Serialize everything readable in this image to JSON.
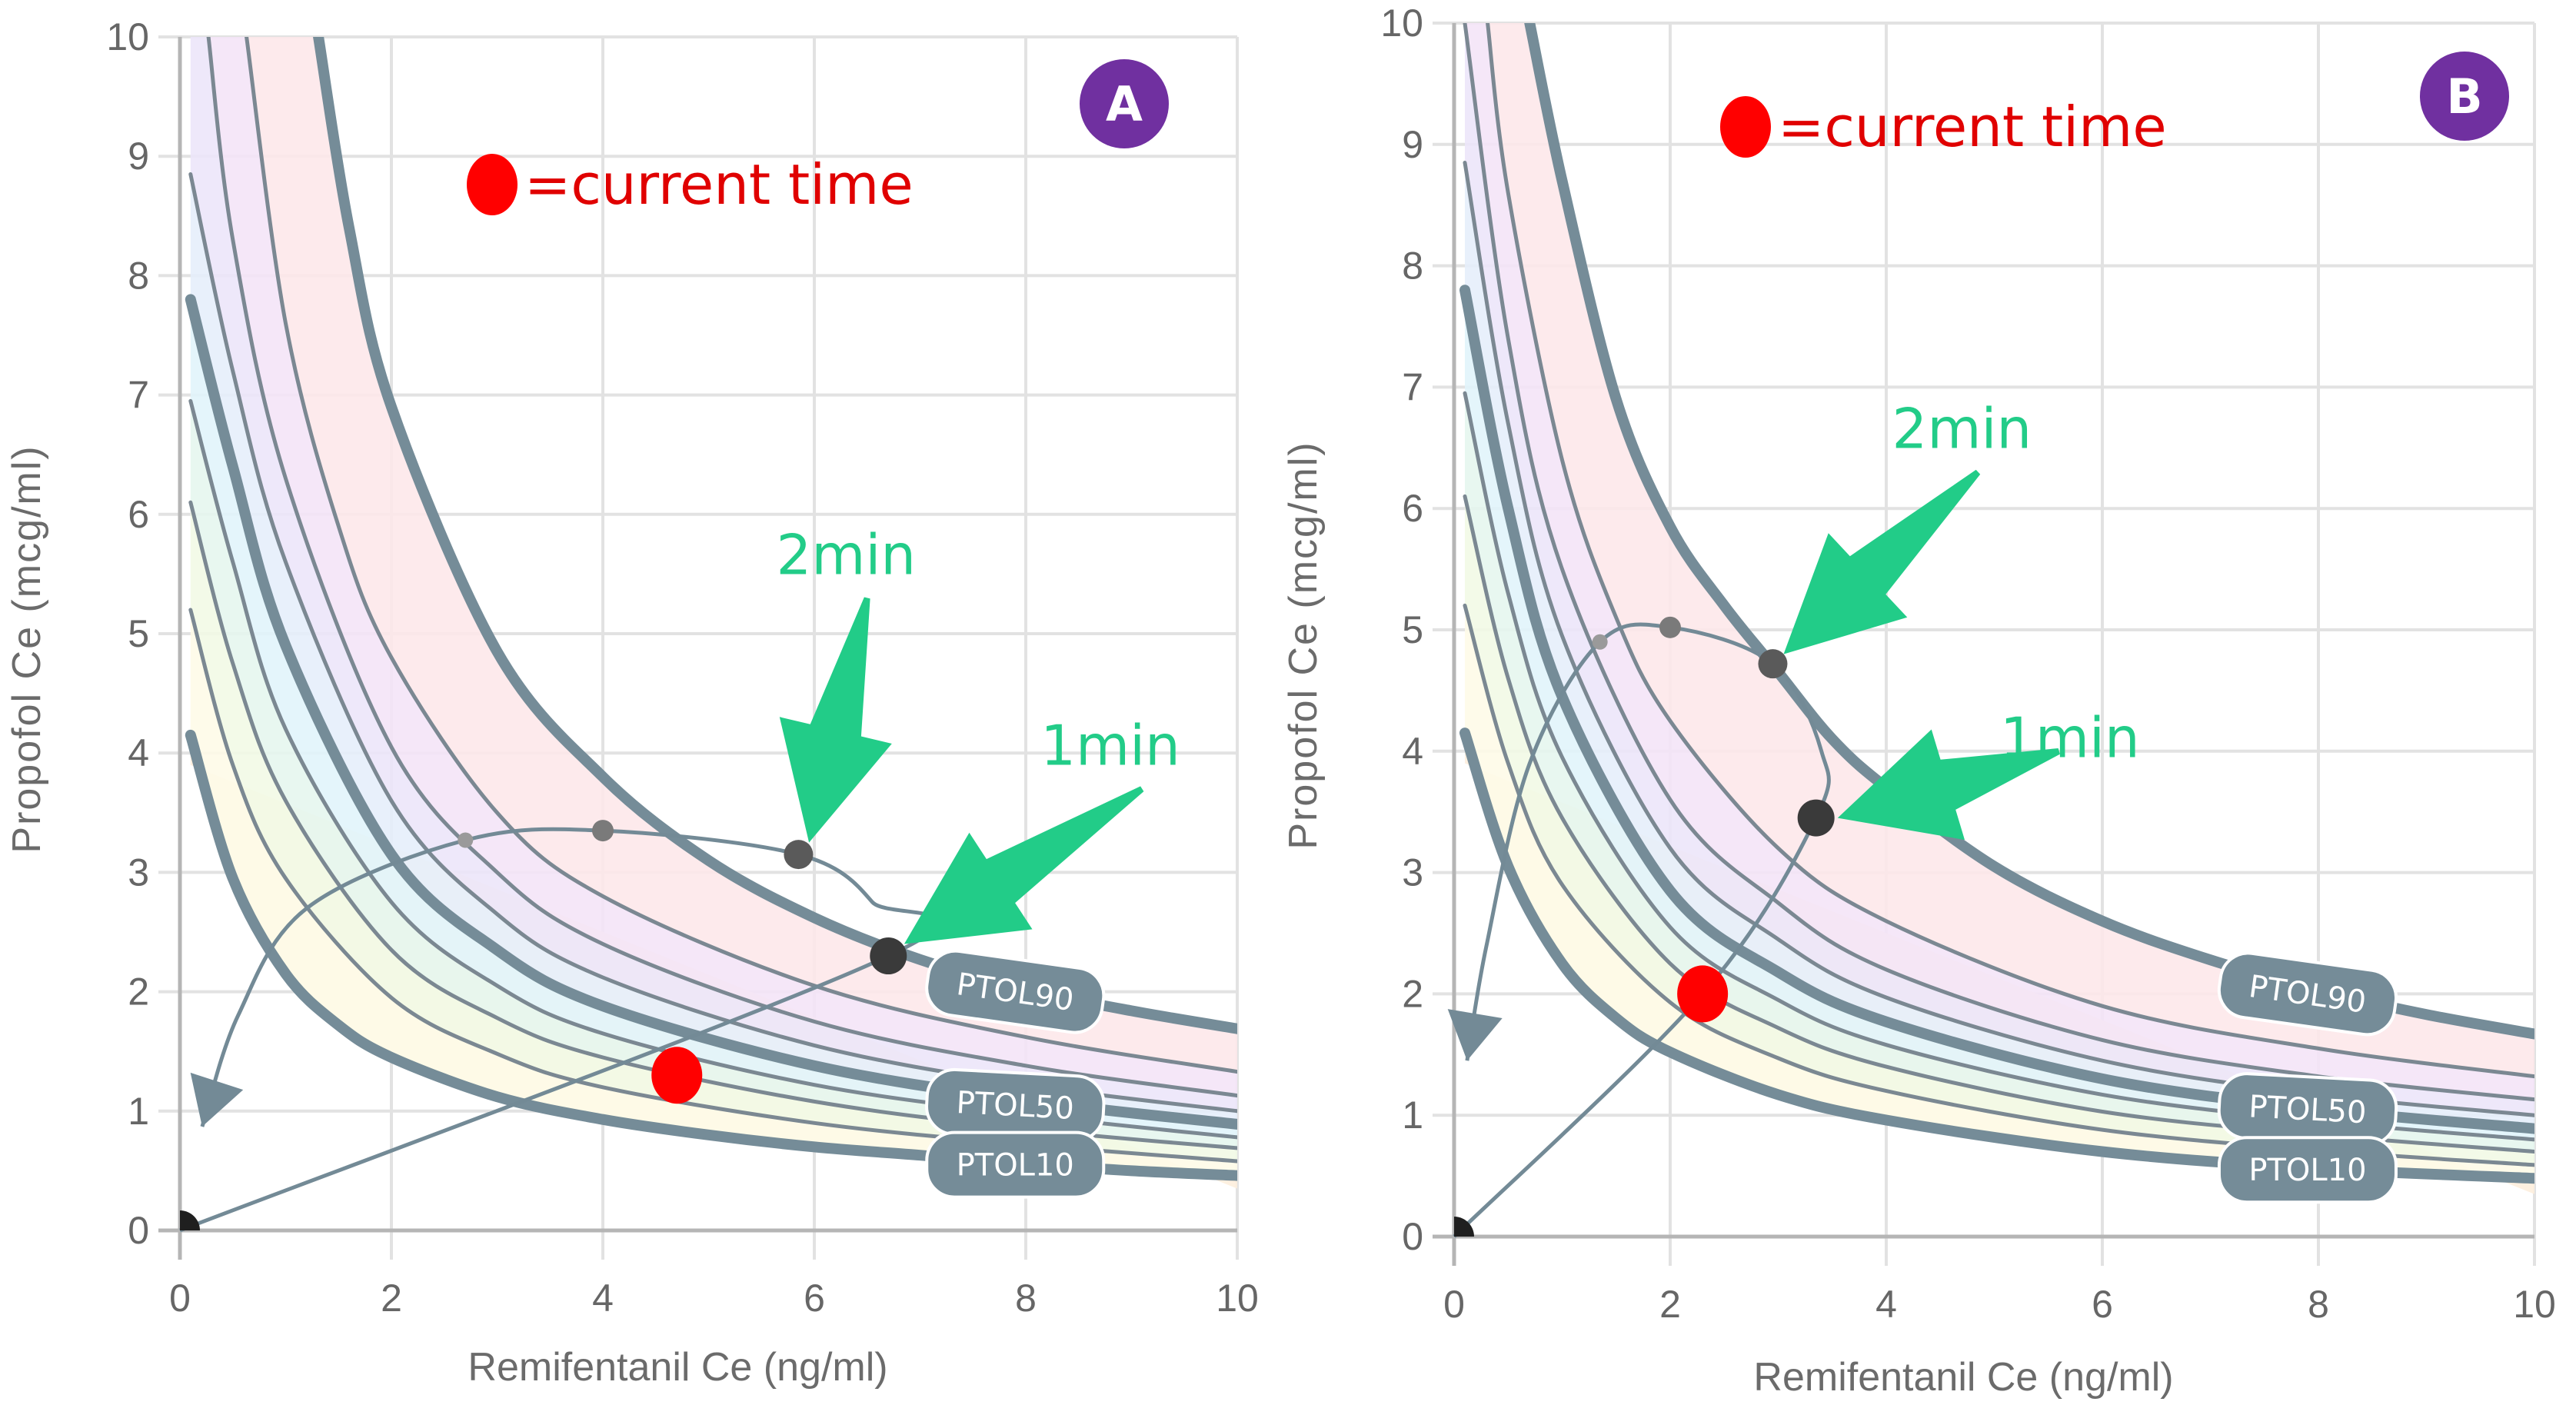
{
  "colors": {
    "grid": "#e2e2e2",
    "axis": "#b5b5b5",
    "isobole": "#758c98",
    "isobole_thin": "#7b8892",
    "label_bg": "#758c98",
    "label_text": "#ffffff",
    "trajectory": "#738a96",
    "red": "#ff0000",
    "legend_red": "#e00000",
    "green": "#22cc88",
    "badge": "#7030a0",
    "band_colors": [
      "#fdeedd",
      "#fefbe8",
      "#f2f9e6",
      "#e6f6ee",
      "#e1f4fb",
      "#e5eefb",
      "#ece6fa",
      "#f4e4f7",
      "#fde8ea"
    ]
  },
  "chart_data": [
    {
      "id": "A",
      "type": "line",
      "badge": "A",
      "xlabel": "Remifentanil Ce (ng/ml)",
      "ylabel": "Propofol Ce (mcg/ml)",
      "xlim": [
        0,
        10
      ],
      "ylim": [
        0,
        10
      ],
      "x_ticks": [
        "0",
        "2",
        "4",
        "6",
        "8",
        "10"
      ],
      "y_ticks": [
        "0",
        "1",
        "2",
        "3",
        "4",
        "5",
        "6",
        "7",
        "8",
        "9",
        "10"
      ],
      "grid": true,
      "legend": {
        "marker": "red-dot",
        "text": "=current time",
        "placement": "top-center"
      },
      "isoboles": [
        {
          "level": 10,
          "label": "PTOL10",
          "thick": true,
          "points": [
            [
              0.1,
              4.15
            ],
            [
              0.5,
              2.95
            ],
            [
              1,
              2.15
            ],
            [
              1.5,
              1.72
            ],
            [
              2,
              1.45
            ],
            [
              3,
              1.12
            ],
            [
              4,
              0.93
            ],
            [
              5,
              0.8
            ],
            [
              6,
              0.7
            ],
            [
              7,
              0.63
            ],
            [
              8,
              0.56
            ],
            [
              9,
              0.5
            ],
            [
              10,
              0.46
            ]
          ]
        },
        {
          "level": 20,
          "label": "",
          "thick": false,
          "points": [
            [
              0.1,
              5.2
            ],
            [
              0.5,
              3.9
            ],
            [
              1,
              2.95
            ],
            [
              2,
              1.95
            ],
            [
              3,
              1.48
            ],
            [
              4,
              1.2
            ],
            [
              6,
              0.9
            ],
            [
              8,
              0.72
            ],
            [
              10,
              0.58
            ]
          ]
        },
        {
          "level": 30,
          "label": "",
          "thick": false,
          "points": [
            [
              0.1,
              6.1
            ],
            [
              0.5,
              4.75
            ],
            [
              1,
              3.6
            ],
            [
              2,
              2.35
            ],
            [
              3,
              1.78
            ],
            [
              4,
              1.45
            ],
            [
              6,
              1.08
            ],
            [
              8,
              0.85
            ],
            [
              10,
              0.69
            ]
          ]
        },
        {
          "level": 40,
          "label": "",
          "thick": false,
          "points": [
            [
              0.1,
              6.95
            ],
            [
              0.5,
              5.6
            ],
            [
              1,
              4.2
            ],
            [
              2,
              2.75
            ],
            [
              3,
              2.05
            ],
            [
              4,
              1.65
            ],
            [
              6,
              1.22
            ],
            [
              8,
              0.97
            ],
            [
              10,
              0.78
            ]
          ]
        },
        {
          "level": 50,
          "label": "PTOL50",
          "thick": true,
          "points": [
            [
              0.1,
              7.8
            ],
            [
              0.5,
              6.4
            ],
            [
              1,
              4.9
            ],
            [
              2,
              3.15
            ],
            [
              3,
              2.35
            ],
            [
              4,
              1.88
            ],
            [
              6,
              1.38
            ],
            [
              8,
              1.09
            ],
            [
              10,
              0.89
            ]
          ]
        },
        {
          "level": 60,
          "label": "",
          "thick": false,
          "points": [
            [
              0.1,
              8.85
            ],
            [
              0.5,
              7.2
            ],
            [
              1,
              5.6
            ],
            [
              2,
              3.6
            ],
            [
              3,
              2.65
            ],
            [
              4,
              2.12
            ],
            [
              6,
              1.55
            ],
            [
              8,
              1.22
            ],
            [
              10,
              1.0
            ]
          ]
        },
        {
          "level": 70,
          "label": "",
          "thick": false,
          "points": [
            [
              0.27,
              10
            ],
            [
              0.5,
              8.3
            ],
            [
              1,
              6.3
            ],
            [
              2,
              4.05
            ],
            [
              3,
              3.0
            ],
            [
              4,
              2.4
            ],
            [
              6,
              1.75
            ],
            [
              8,
              1.38
            ],
            [
              10,
              1.13
            ]
          ]
        },
        {
          "level": 80,
          "label": "",
          "thick": false,
          "points": [
            [
              0.63,
              10
            ],
            [
              1,
              7.6
            ],
            [
              1.5,
              5.9
            ],
            [
              2,
              4.8
            ],
            [
              3,
              3.5
            ],
            [
              4,
              2.8
            ],
            [
              6,
              2.05
            ],
            [
              8,
              1.62
            ],
            [
              10,
              1.33
            ]
          ]
        },
        {
          "level": 90,
          "label": "PTOL90",
          "thick": true,
          "points": [
            [
              1.31,
              10
            ],
            [
              1.6,
              8.4
            ],
            [
              2,
              6.9
            ],
            [
              3,
              4.85
            ],
            [
              4,
              3.8
            ],
            [
              5,
              3.1
            ],
            [
              6,
              2.62
            ],
            [
              7,
              2.27
            ],
            [
              8,
              2.02
            ],
            [
              9,
              1.84
            ],
            [
              10,
              1.69
            ]
          ]
        }
      ],
      "isobole_labels": [
        {
          "text": "PTOL90",
          "x": 7.9,
          "y": 2.0,
          "angle": 8
        },
        {
          "text": "PTOL50",
          "x": 7.9,
          "y": 1.05,
          "angle": 3
        },
        {
          "text": "PTOL10",
          "x": 7.9,
          "y": 0.55,
          "angle": 0
        }
      ],
      "trajectory": {
        "points": [
          [
            0,
            0
          ],
          [
            6.7,
            2.3
          ],
          [
            6.55,
            2.75
          ],
          [
            5.85,
            3.15
          ],
          [
            4.0,
            3.35
          ],
          [
            2.7,
            3.27
          ],
          [
            1.2,
            2.7
          ],
          [
            0.55,
            1.8
          ],
          [
            0.21,
            0.87
          ]
        ],
        "start": [
          0,
          0
        ],
        "markers": [
          {
            "x": 6.7,
            "y": 2.3,
            "tone": "dark",
            "size": "large"
          },
          {
            "x": 5.85,
            "y": 3.15,
            "tone": "mid",
            "size": "medium"
          },
          {
            "x": 4.0,
            "y": 3.35,
            "tone": "light",
            "size": "small"
          },
          {
            "x": 2.7,
            "y": 3.27,
            "tone": "lighter",
            "size": "tiny"
          }
        ],
        "current": {
          "x": 4.7,
          "y": 1.3
        }
      },
      "annotations": [
        {
          "text": "1min",
          "x": 8.8,
          "y": 3.9,
          "arrow_from": [
            9.1,
            3.7
          ],
          "arrow_to": [
            6.85,
            2.4
          ]
        },
        {
          "text": "2min",
          "x": 6.3,
          "y": 5.5,
          "arrow_from": [
            6.5,
            5.3
          ],
          "arrow_to": [
            5.95,
            3.25
          ]
        }
      ]
    },
    {
      "id": "B",
      "type": "line",
      "badge": "B",
      "xlabel": "Remifentanil Ce (ng/ml)",
      "ylabel": "Propofol Ce (mcg/ml)",
      "xlim": [
        0,
        10
      ],
      "ylim": [
        0,
        10
      ],
      "x_ticks": [
        "0",
        "2",
        "4",
        "6",
        "8",
        "10"
      ],
      "y_ticks": [
        "0",
        "1",
        "2",
        "3",
        "4",
        "5",
        "6",
        "7",
        "8",
        "9",
        "10"
      ],
      "grid": true,
      "legend": {
        "marker": "red-dot",
        "text": "=current time",
        "placement": "top-center"
      },
      "isoboles": [
        {
          "level": 10,
          "label": "PTOL10",
          "thick": true,
          "points": [
            [
              0.1,
              4.15
            ],
            [
              0.5,
              3.05
            ],
            [
              1,
              2.25
            ],
            [
              1.5,
              1.8
            ],
            [
              2,
              1.52
            ],
            [
              3,
              1.17
            ],
            [
              4,
              0.96
            ],
            [
              6,
              0.7
            ],
            [
              8,
              0.56
            ],
            [
              10,
              0.48
            ]
          ]
        },
        {
          "level": 20,
          "label": "",
          "thick": false,
          "points": [
            [
              0.1,
              5.2
            ],
            [
              0.5,
              3.9
            ],
            [
              1,
              2.9
            ],
            [
              2,
              1.93
            ],
            [
              3,
              1.47
            ],
            [
              4,
              1.2
            ],
            [
              6,
              0.88
            ],
            [
              8,
              0.71
            ],
            [
              10,
              0.59
            ]
          ]
        },
        {
          "level": 30,
          "label": "",
          "thick": false,
          "points": [
            [
              0.1,
              6.1
            ],
            [
              0.5,
              4.6
            ],
            [
              1,
              3.45
            ],
            [
              2,
              2.25
            ],
            [
              3,
              1.72
            ],
            [
              4,
              1.4
            ],
            [
              6,
              1.03
            ],
            [
              8,
              0.84
            ],
            [
              10,
              0.7
            ]
          ]
        },
        {
          "level": 40,
          "label": "",
          "thick": false,
          "points": [
            [
              0.1,
              6.95
            ],
            [
              0.5,
              5.3
            ],
            [
              1,
              3.95
            ],
            [
              2,
              2.55
            ],
            [
              3,
              1.95
            ],
            [
              4,
              1.58
            ],
            [
              6,
              1.17
            ],
            [
              8,
              0.95
            ],
            [
              10,
              0.8
            ]
          ]
        },
        {
          "level": 50,
          "label": "PTOL50",
          "thick": true,
          "points": [
            [
              0.1,
              7.8
            ],
            [
              0.5,
              6.0
            ],
            [
              1,
              4.45
            ],
            [
              2,
              2.85
            ],
            [
              3,
              2.18
            ],
            [
              4,
              1.77
            ],
            [
              6,
              1.3
            ],
            [
              8,
              1.05
            ],
            [
              10,
              0.89
            ]
          ]
        },
        {
          "level": 60,
          "label": "",
          "thick": false,
          "points": [
            [
              0.1,
              8.85
            ],
            [
              0.5,
              6.7
            ],
            [
              1,
              4.95
            ],
            [
              2,
              3.2
            ],
            [
              3,
              2.45
            ],
            [
              4,
              1.97
            ],
            [
              6,
              1.45
            ],
            [
              8,
              1.17
            ],
            [
              10,
              1.0
            ]
          ]
        },
        {
          "level": 70,
          "label": "",
          "thick": false,
          "points": [
            [
              0.1,
              10
            ],
            [
              0.5,
              7.4
            ],
            [
              1,
              5.5
            ],
            [
              2,
              3.6
            ],
            [
              3,
              2.75
            ],
            [
              4,
              2.2
            ],
            [
              6,
              1.62
            ],
            [
              8,
              1.32
            ],
            [
              10,
              1.13
            ]
          ]
        },
        {
          "level": 80,
          "label": "",
          "thick": false,
          "points": [
            [
              0.31,
              10
            ],
            [
              0.5,
              8.6
            ],
            [
              1,
              6.4
            ],
            [
              1.5,
              5.1
            ],
            [
              2,
              4.25
            ],
            [
              3,
              3.2
            ],
            [
              4,
              2.6
            ],
            [
              6,
              1.9
            ],
            [
              8,
              1.55
            ],
            [
              10,
              1.32
            ]
          ]
        },
        {
          "level": 90,
          "label": "PTOL90",
          "thick": true,
          "points": [
            [
              0.7,
              10
            ],
            [
              1,
              8.7
            ],
            [
              1.5,
              6.9
            ],
            [
              2,
              5.85
            ],
            [
              2.5,
              5.2
            ],
            [
              3,
              4.65
            ],
            [
              3.5,
              4.1
            ],
            [
              4,
              3.7
            ],
            [
              5,
              3.05
            ],
            [
              6,
              2.6
            ],
            [
              7,
              2.28
            ],
            [
              8,
              2.03
            ],
            [
              9,
              1.83
            ],
            [
              10,
              1.67
            ]
          ]
        }
      ],
      "isobole_labels": [
        {
          "text": "PTOL90",
          "x": 7.9,
          "y": 2.0,
          "angle": 8
        },
        {
          "text": "PTOL50",
          "x": 7.9,
          "y": 1.05,
          "angle": 3
        },
        {
          "text": "PTOL10",
          "x": 7.9,
          "y": 0.55,
          "angle": 0
        }
      ],
      "trajectory": {
        "points": [
          [
            0,
            0
          ],
          [
            2.3,
            2.0
          ],
          [
            3.35,
            3.45
          ],
          [
            3.4,
            4.0
          ],
          [
            2.95,
            4.72
          ],
          [
            2.0,
            5.02
          ],
          [
            1.35,
            4.9
          ],
          [
            0.7,
            3.9
          ],
          [
            0.3,
            2.4
          ],
          [
            0.12,
            1.45
          ]
        ],
        "start": [
          0,
          0
        ],
        "markers": [
          {
            "x": 3.35,
            "y": 3.45,
            "tone": "dark",
            "size": "large"
          },
          {
            "x": 2.95,
            "y": 4.72,
            "tone": "mid",
            "size": "medium"
          },
          {
            "x": 2.0,
            "y": 5.02,
            "tone": "light",
            "size": "small"
          },
          {
            "x": 1.35,
            "y": 4.9,
            "tone": "lighter",
            "size": "tiny"
          }
        ],
        "current": {
          "x": 2.3,
          "y": 2.0
        }
      },
      "annotations": [
        {
          "text": "1min",
          "x": 5.7,
          "y": 3.95,
          "arrow_from": [
            5.6,
            4.0
          ],
          "arrow_to": [
            3.55,
            3.45
          ]
        },
        {
          "text": "2min",
          "x": 4.7,
          "y": 6.5,
          "arrow_from": [
            4.85,
            6.3
          ],
          "arrow_to": [
            3.05,
            4.8
          ]
        }
      ]
    }
  ]
}
